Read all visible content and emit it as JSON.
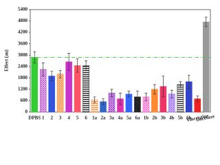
{
  "chart_data": {
    "type": "bar",
    "y_label": "Effect (au)",
    "categories": [
      "DPBS",
      "1",
      "2",
      "3",
      "4",
      "5",
      "6",
      "1a",
      "2a",
      "3a",
      "4a",
      "5a",
      "6a",
      "1b",
      "2b",
      "3b",
      "4b",
      "5b",
      "6b",
      "Vincristine",
      "Docetaxel"
    ],
    "values": [
      2880,
      2250,
      1900,
      2000,
      2650,
      2450,
      2450,
      650,
      550,
      1000,
      700,
      950,
      800,
      800,
      1200,
      1350,
      950,
      1450,
      1600,
      700,
      4750
    ],
    "errors": [
      300,
      350,
      250,
      200,
      450,
      350,
      250,
      150,
      150,
      200,
      300,
      150,
      300,
      200,
      250,
      550,
      200,
      150,
      350,
      150,
      250
    ],
    "colors": [
      "#33cc33",
      "#bb55cc",
      "#3355dd",
      "#ff8833",
      "#cc33cc",
      "#ff5566",
      "#222222",
      "#ff8833",
      "#3366cc",
      "#9933cc",
      "#dd33aa",
      "#3366ff",
      "#222222",
      "#ff66cc",
      "#ff8833",
      "#ee3366",
      "#9966ff",
      "#333333",
      "#3344cc",
      "#ee2222",
      "#999999"
    ],
    "patterns": [
      "solid",
      "cross",
      "solid",
      "cross",
      "solid",
      "solid",
      "hline",
      "hline",
      "solid",
      "cross",
      "solid",
      "solid",
      "solid",
      "cross",
      "solid",
      "solid",
      "cross",
      "hline",
      "solid",
      "solid",
      "solid"
    ],
    "ref_line": {
      "value": 2880,
      "color": "#33cc33"
    },
    "ylim": [
      0,
      5400
    ],
    "yticks": [
      0,
      600,
      1200,
      1800,
      2400,
      3000,
      3600,
      4200,
      4800,
      5400
    ]
  }
}
